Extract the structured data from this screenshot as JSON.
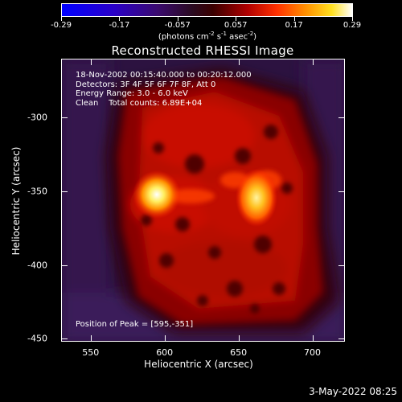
{
  "colorbar": {
    "ticks": [
      "-0.29",
      "-0.17",
      "-0.057",
      "0.057",
      "0.17",
      "0.29"
    ],
    "unit_prefix": "(photons cm",
    "unit_exp1": "-2",
    "unit_mid": " s",
    "unit_exp2": "-1",
    "unit_mid2": " asec",
    "unit_exp3": "-2",
    "unit_suffix": ")",
    "range": [
      -0.29,
      0.29
    ]
  },
  "chart_data": {
    "type": "heatmap",
    "title": "Reconstructed RHESSI Image",
    "xlabel": "Heliocentric X (arcsec)",
    "ylabel": "Heliocentric Y (arcsec)",
    "x_ticks": [
      "550",
      "600",
      "650",
      "700"
    ],
    "y_ticks": [
      "-300",
      "-350",
      "-400",
      "-450"
    ],
    "xlim": [
      530,
      722
    ],
    "ylim": [
      -452,
      -260
    ],
    "colormap": "rainbow-like (blue-purple-red-orange-yellow-white)",
    "peaks": [
      {
        "x": 595,
        "y": -351,
        "intensity": 0.29
      },
      {
        "x": 665,
        "y": -352,
        "intensity": 0.25
      }
    ]
  },
  "annotations": {
    "line1": "18-Nov-2002 00:15:40.000 to 00:20:12.000",
    "line2": "Detectors: 3F 4F 5F 6F 7F 8F, Att 0",
    "line3": "Energy Range: 3.0 - 6.0 keV",
    "line4_a": "Clean",
    "line4_b": "Total counts: 6.89E+04",
    "peak_label": "Position of Peak = [595,-351]"
  },
  "timestamp": "3-May-2022 08:25"
}
